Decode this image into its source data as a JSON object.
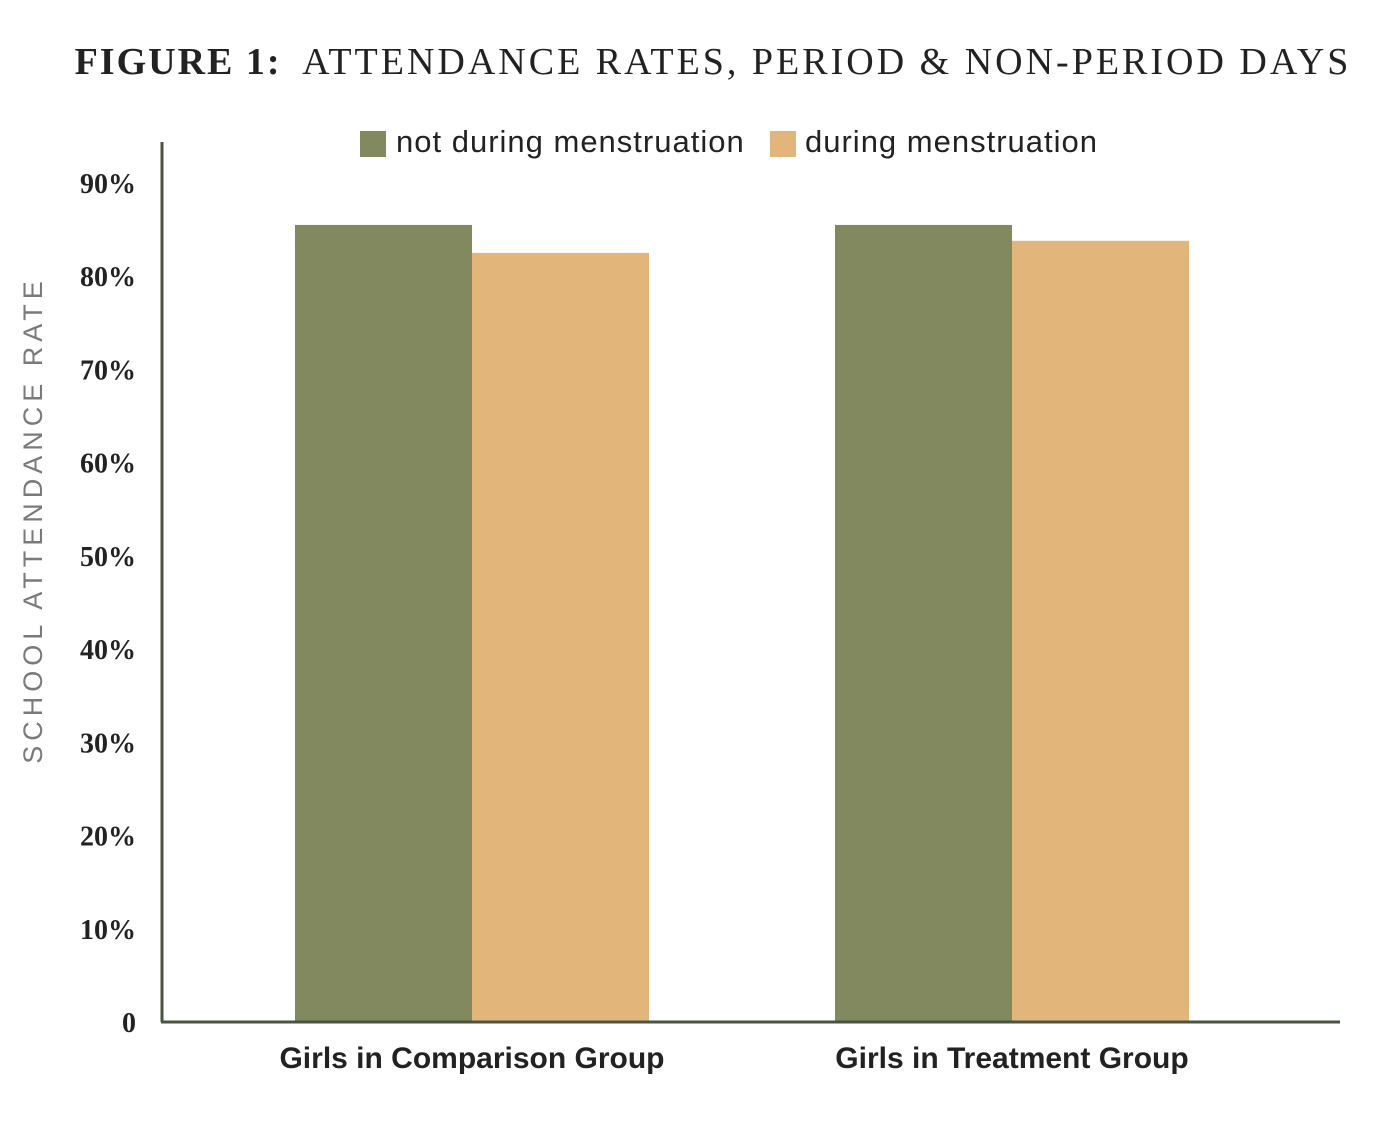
{
  "chart_data": {
    "type": "bar",
    "title_lead": "FIGURE 1:",
    "title_rest": "ATTENDANCE RATES, PERIOD & NON-PERIOD DAYS",
    "xlabel": "",
    "ylabel": "SCHOOL ATTENDANCE RATE",
    "ylim": [
      0,
      90
    ],
    "yticks": [
      0,
      10,
      20,
      30,
      40,
      50,
      60,
      70,
      80,
      90
    ],
    "ytick_labels": [
      "0",
      "10%",
      "20%",
      "30%",
      "40%",
      "50%",
      "60%",
      "70%",
      "80%",
      "90%"
    ],
    "categories": [
      "Girls in Comparison Group",
      "Girls in Treatment Group"
    ],
    "series": [
      {
        "name": "not during menstruation",
        "color": "#82895e",
        "values": [
          85.5,
          85.5
        ]
      },
      {
        "name": "during menstruation",
        "color": "#e2b57b",
        "values": [
          82.5,
          83.8
        ]
      }
    ],
    "legend_position": "top-center",
    "grid": false,
    "axis_color": "#4a5440"
  }
}
